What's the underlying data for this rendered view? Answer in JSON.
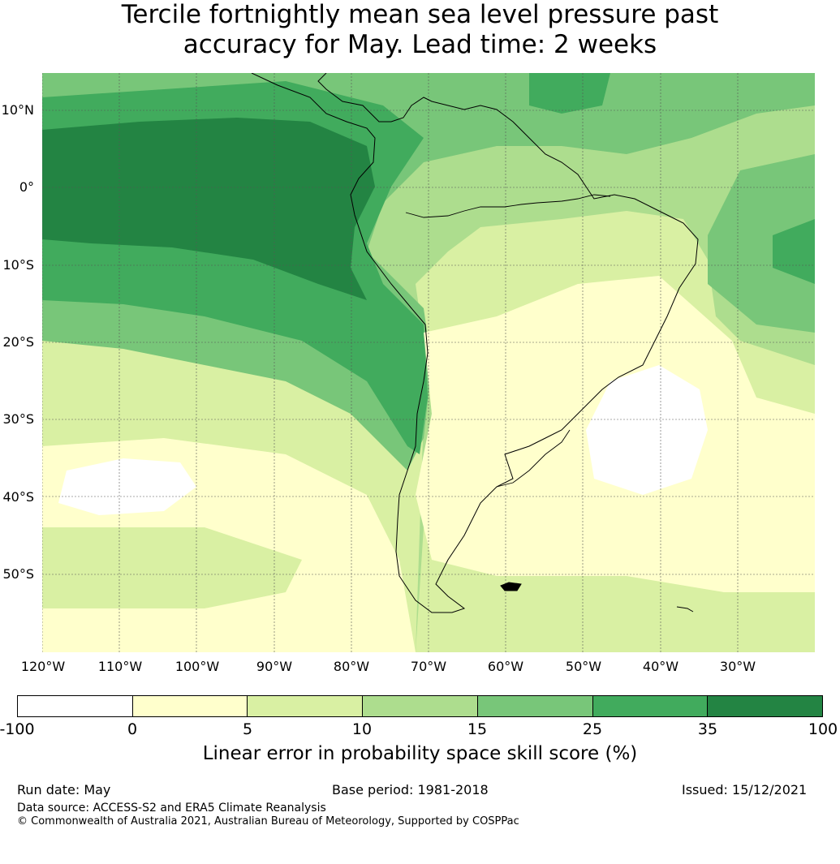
{
  "title": {
    "line1": "Tercile fortnightly mean sea level pressure past",
    "line2": "accuracy for May. Lead time: 2 weeks"
  },
  "map": {
    "lat_labels": [
      "10°N",
      "0°",
      "10°S",
      "20°S",
      "30°S",
      "40°S",
      "50°S"
    ],
    "lon_labels": [
      "120°W",
      "110°W",
      "100°W",
      "90°W",
      "80°W",
      "70°W",
      "60°W",
      "50°W",
      "40°W",
      "30°W"
    ],
    "gridline_color": "#555555",
    "coastline_color": "#000000"
  },
  "colorbar": {
    "ticks": [
      "-100",
      "0",
      "5",
      "10",
      "15",
      "25",
      "35",
      "100"
    ],
    "colors": [
      "#ffffff",
      "#ffffcc",
      "#d9f0a3",
      "#addd8e",
      "#78c679",
      "#41ab5d",
      "#238443"
    ],
    "label": "Linear error in probability space skill score (%)"
  },
  "footer": {
    "run_date": "Run date: May",
    "base_period": "Base period: 1981-2018",
    "issued": "Issued: 15/12/2021",
    "data_source": "Data source: ACCESS-S2 and ERA5 Climate Reanalysis",
    "copyright": "© Commonwealth of Australia 2021, Australian Bureau of Meteorology, Supported by COSPPac"
  }
}
